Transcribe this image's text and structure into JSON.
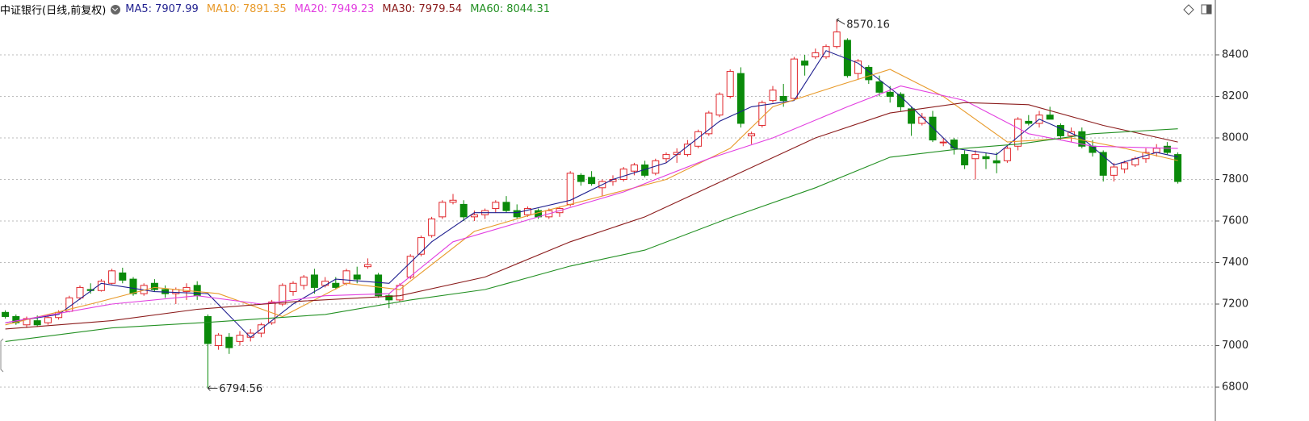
{
  "chart_data": {
    "type": "candlestick",
    "title": "中证银行(日线,前复权)",
    "ylim": [
      6637,
      8664
    ],
    "yticks": [
      6800,
      7000,
      7200,
      7400,
      7600,
      7800,
      8000,
      8200,
      8400
    ],
    "grid": true,
    "up_color": "#e0262b",
    "down_color": "#0a8a0a",
    "open": [
      7160,
      7140,
      7100,
      7120,
      7110,
      7135,
      7165,
      7230,
      7270,
      7265,
      7300,
      7350,
      7320,
      7250,
      7300,
      7270,
      7250,
      7260,
      7290,
      7140,
      7000,
      7040,
      7020,
      7040,
      7060,
      7110,
      7200,
      7260,
      7290,
      7340,
      7290,
      7300,
      7300,
      7340,
      7380,
      7340,
      7240,
      7220,
      7330,
      7440,
      7530,
      7620,
      7690,
      7680,
      7620,
      7630,
      7660,
      7690,
      7650,
      7630,
      7650,
      7620,
      7640,
      7680,
      7820,
      7810,
      7760,
      7790,
      7800,
      7840,
      7870,
      7830,
      7900,
      7920,
      7920,
      7960,
      8020,
      8110,
      8200,
      8310,
      8010,
      8060,
      8180,
      8200,
      8190,
      8370,
      8390,
      8390,
      8440,
      8470,
      8310,
      8340,
      8270,
      8220,
      8210,
      8140,
      8070,
      8100,
      7980,
      7990,
      7920,
      7900,
      7910,
      7890,
      7890,
      7960,
      8080,
      8070,
      8110,
      8060,
      8010,
      8030,
      7960,
      7930,
      7820,
      7850,
      7870,
      7900,
      7930,
      7960,
      7920
    ],
    "high": [
      7170,
      7150,
      7140,
      7145,
      7140,
      7170,
      7240,
      7290,
      7300,
      7320,
      7370,
      7375,
      7330,
      7300,
      7320,
      7290,
      7280,
      7300,
      7310,
      7150,
      7060,
      7060,
      7070,
      7080,
      7110,
      7220,
      7300,
      7310,
      7340,
      7370,
      7330,
      7330,
      7370,
      7380,
      7420,
      7350,
      7250,
      7300,
      7440,
      7530,
      7620,
      7700,
      7730,
      7700,
      7650,
      7660,
      7700,
      7720,
      7680,
      7670,
      7660,
      7660,
      7670,
      7840,
      7830,
      7840,
      7800,
      7820,
      7860,
      7880,
      7890,
      7900,
      7930,
      7950,
      7990,
      8040,
      8130,
      8220,
      8330,
      8340,
      8030,
      8180,
      8250,
      8260,
      8390,
      8400,
      8430,
      8450,
      8570.16,
      8480,
      8380,
      8350,
      8300,
      8250,
      8220,
      8150,
      8120,
      8130,
      8000,
      8000,
      7940,
      7940,
      7930,
      7930,
      7960,
      8100,
      8110,
      8130,
      8150,
      8070,
      8050,
      8050,
      7990,
      7940,
      7880,
      7890,
      7910,
      7950,
      7970,
      7980,
      7930
    ],
    "low": [
      7130,
      7100,
      7085,
      7090,
      7100,
      7125,
      7160,
      7220,
      7250,
      7260,
      7295,
      7300,
      7240,
      7240,
      7260,
      7230,
      7200,
      7220,
      7220,
      6794.56,
      6980,
      6960,
      7000,
      7020,
      7040,
      7100,
      7190,
      7240,
      7270,
      7250,
      7280,
      7270,
      7290,
      7300,
      7370,
      7230,
      7180,
      7210,
      7320,
      7430,
      7520,
      7610,
      7680,
      7600,
      7600,
      7610,
      7640,
      7640,
      7610,
      7620,
      7610,
      7610,
      7620,
      7670,
      7770,
      7770,
      7720,
      7770,
      7790,
      7820,
      7810,
      7820,
      7880,
      7880,
      7910,
      7950,
      8010,
      8100,
      8190,
      8050,
      7970,
      8050,
      8170,
      8150,
      8180,
      8300,
      8380,
      8380,
      8430,
      8290,
      8280,
      8260,
      8200,
      8170,
      8130,
      8010,
      8060,
      7980,
      7960,
      7920,
      7850,
      7800,
      7850,
      7830,
      7880,
      7940,
      8060,
      8050,
      8090,
      7990,
      7980,
      7950,
      7910,
      7790,
      7790,
      7830,
      7860,
      7880,
      7910,
      7920,
      7780
    ],
    "close": [
      7140,
      7110,
      7130,
      7100,
      7135,
      7160,
      7230,
      7280,
      7265,
      7310,
      7360,
      7315,
      7250,
      7290,
      7270,
      7250,
      7270,
      7280,
      7240,
      7010,
      7050,
      6990,
      7050,
      7060,
      7100,
      7210,
      7290,
      7300,
      7330,
      7280,
      7310,
      7280,
      7360,
      7320,
      7390,
      7240,
      7220,
      7290,
      7430,
      7520,
      7610,
      7690,
      7700,
      7620,
      7630,
      7650,
      7690,
      7650,
      7620,
      7660,
      7620,
      7650,
      7660,
      7830,
      7790,
      7780,
      7790,
      7800,
      7850,
      7870,
      7820,
      7890,
      7920,
      7930,
      7970,
      8030,
      8120,
      8210,
      8320,
      8070,
      8020,
      8170,
      8230,
      8180,
      8380,
      8350,
      8410,
      8440,
      8510,
      8300,
      8370,
      8280,
      8220,
      8200,
      8150,
      8070,
      8100,
      7990,
      7980,
      7950,
      7870,
      7920,
      7900,
      7880,
      7950,
      8090,
      8070,
      8110,
      8090,
      8010,
      8030,
      7960,
      7930,
      7820,
      7860,
      7880,
      7900,
      7930,
      7950,
      7930,
      7790
    ],
    "ma_lines": [
      {
        "name": "MA5:",
        "current": 7907.99,
        "color": "#1f1f8f",
        "x": [
          0,
          5,
          9,
          14,
          19,
          23,
          27,
          31,
          36,
          40,
          44,
          48,
          53,
          57,
          62,
          67,
          70,
          74,
          77,
          80,
          84,
          89,
          93,
          97,
          101,
          104,
          108,
          110
        ],
        "values": [
          7110,
          7150,
          7300,
          7260,
          7250,
          7040,
          7200,
          7320,
          7300,
          7500,
          7640,
          7640,
          7700,
          7800,
          7880,
          8080,
          8150,
          8180,
          8420,
          8360,
          8200,
          7950,
          7920,
          8090,
          8000,
          7870,
          7930,
          7908
        ]
      },
      {
        "name": "MA10:",
        "current": 7891.35,
        "color": "#e89a2a",
        "x": [
          0,
          8,
          14,
          20,
          26,
          32,
          37,
          44,
          50,
          56,
          62,
          68,
          72,
          78,
          83,
          88,
          94,
          100,
          105,
          110
        ],
        "values": [
          7100,
          7200,
          7280,
          7250,
          7140,
          7300,
          7270,
          7550,
          7640,
          7720,
          7800,
          7950,
          8150,
          8250,
          8330,
          8200,
          7980,
          8000,
          7950,
          7891
        ]
      },
      {
        "name": "MA20:",
        "current": 7949.23,
        "color": "#e23fe0",
        "x": [
          0,
          10,
          18,
          24,
          30,
          36,
          42,
          50,
          58,
          66,
          72,
          79,
          84,
          90,
          96,
          102,
          110
        ],
        "values": [
          7110,
          7200,
          7240,
          7200,
          7240,
          7250,
          7500,
          7620,
          7740,
          7900,
          8000,
          8150,
          8250,
          8180,
          8020,
          7960,
          7949
        ]
      },
      {
        "name": "MA30:",
        "current": 7979.54,
        "color": "#8b1c1c",
        "x": [
          0,
          10,
          18,
          28,
          37,
          45,
          53,
          60,
          68,
          76,
          83,
          90,
          96,
          103,
          110
        ],
        "values": [
          7080,
          7120,
          7175,
          7215,
          7240,
          7330,
          7500,
          7620,
          7810,
          8000,
          8120,
          8170,
          8160,
          8060,
          7980
        ]
      },
      {
        "name": "MA60:",
        "current": 8044.31,
        "color": "#239023",
        "x": [
          0,
          10,
          19,
          30,
          38,
          45,
          53,
          60,
          68,
          76,
          83,
          90,
          95,
          102,
          110
        ],
        "values": [
          7020,
          7085,
          7112,
          7150,
          7220,
          7270,
          7383,
          7460,
          7616,
          7760,
          7907,
          7950,
          7970,
          8020,
          8044
        ]
      }
    ]
  }
}
